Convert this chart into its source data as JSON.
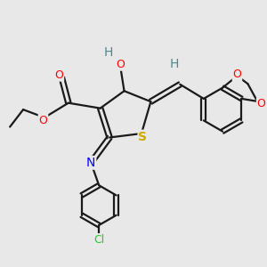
{
  "background_color": "#e8e8e8",
  "bond_color": "#1a1a1a",
  "bond_width": 1.6,
  "atom_colors": {
    "O": "#ff0000",
    "S": "#ccaa00",
    "N": "#0000ff",
    "Cl": "#22cc22",
    "H": "#4a8a8a",
    "C": "#1a1a1a"
  },
  "figsize": [
    3.0,
    3.0
  ],
  "dpi": 100
}
